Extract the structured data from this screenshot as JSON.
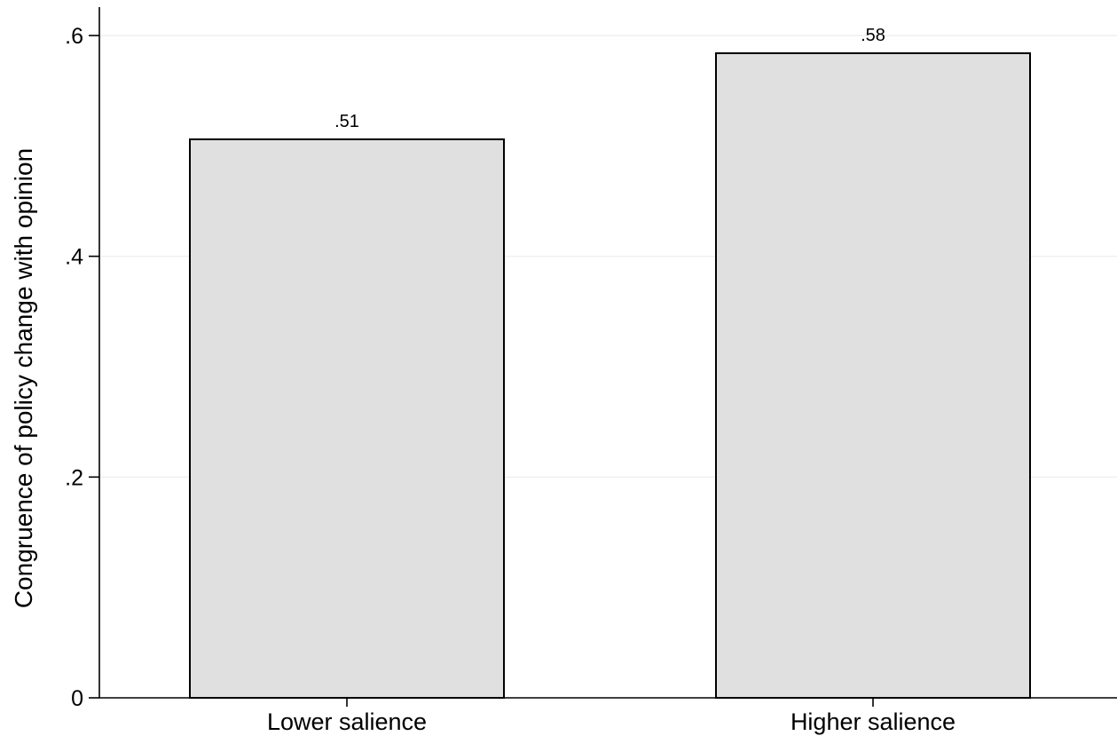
{
  "chart_data": {
    "type": "bar",
    "categories": [
      "Lower salience",
      "Higher salience"
    ],
    "values": [
      0.506,
      0.584
    ],
    "data_labels": [
      ".51",
      ".58"
    ],
    "title": "",
    "xlabel": "",
    "ylabel": "Congruence of policy change with opinion",
    "ylim": [
      0,
      0.62
    ],
    "y_ticks": [
      0,
      0.2,
      0.4,
      0.6
    ],
    "y_tick_labels": [
      "0",
      ".2",
      ".4",
      ".6"
    ],
    "grid": true,
    "legend": "none",
    "bar_fill": "#e0e0e0",
    "bar_stroke": "#000000"
  }
}
